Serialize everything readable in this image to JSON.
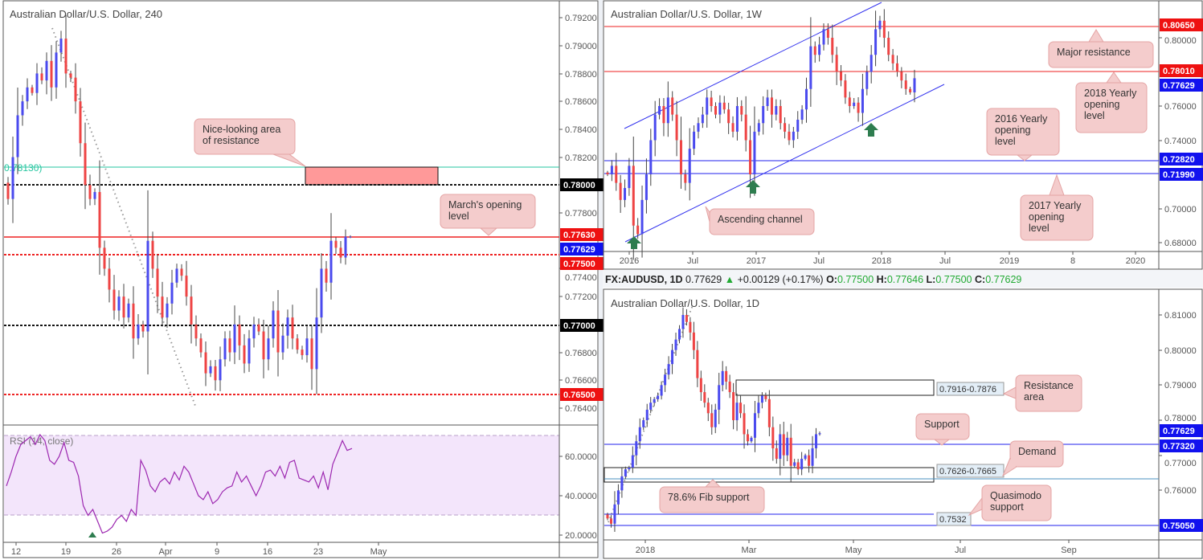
{
  "colors": {
    "up": "#4a4aee",
    "down": "#ee4444",
    "callout_bg": "#f4cccc",
    "callout_border": "#e4a4a4",
    "blue_line": "#2222ee",
    "red_line": "#ee2222",
    "fib_green": "#26c6a0"
  },
  "chart_data": [
    {
      "type": "candlestick",
      "title": "Australian Dollar/U.S. Dollar, 240",
      "ylim": [
        0.7632,
        0.793
      ],
      "x_ticks": [
        "12",
        "19",
        "26",
        "Apr",
        "9",
        "16",
        "23",
        "May"
      ],
      "y_ticks": [
        "0.79200",
        "0.79000",
        "0.78800",
        "0.78600",
        "0.78400",
        "0.78200",
        "0.77800",
        "0.77400",
        "0.77200",
        "0.76800",
        "0.76600",
        "0.76400"
      ],
      "price_badges": [
        "0.78000",
        "0.77630",
        "0.77629",
        "0.77500",
        "0.77000",
        "0.76500"
      ],
      "fib_label": "0.78130)",
      "levels": {
        "fib": 0.7813,
        "round_high": 0.78,
        "march_open": 0.7763,
        "current": 0.77629,
        "level_7750": 0.775,
        "round_low": 0.77,
        "level_7650": 0.765
      },
      "resistance_zone": [
        0.78,
        0.7813
      ],
      "closes": [
        0.779,
        0.782,
        0.785,
        0.786,
        0.787,
        0.7866,
        0.788,
        0.7875,
        0.7889,
        0.787,
        0.7895,
        0.7905,
        0.788,
        0.7877,
        0.786,
        0.783,
        0.78,
        0.779,
        0.7795,
        0.7755,
        0.774,
        0.7725,
        0.771,
        0.772,
        0.7705,
        0.7715,
        0.769,
        0.77,
        0.7695,
        0.776,
        0.774,
        0.772,
        0.7705,
        0.7715,
        0.773,
        0.774,
        0.7735,
        0.772,
        0.77,
        0.769,
        0.768,
        0.7665,
        0.767,
        0.766,
        0.7675,
        0.769,
        0.768,
        0.77,
        0.7685,
        0.7672,
        0.769,
        0.77,
        0.7695,
        0.7675,
        0.769,
        0.771,
        0.768,
        0.7692,
        0.7705,
        0.769,
        0.7682,
        0.7678,
        0.769,
        0.7668,
        0.7705,
        0.774,
        0.773,
        0.776,
        0.7755,
        0.7748,
        0.7763,
        0.7763
      ],
      "annotations": [
        "Nice-looking area\nof resistance",
        "March's opening\nlevel"
      ],
      "rsi": {
        "label": "RSI (14, close)",
        "ylim": [
          15,
          75
        ],
        "y_ticks": [
          "60.0000",
          "40.0000",
          "20.0000"
        ],
        "bands": [
          30,
          70
        ],
        "values": [
          45,
          52,
          60,
          66,
          68,
          70,
          66,
          71,
          68,
          58,
          56,
          60,
          67,
          58,
          57,
          50,
          35,
          30,
          33,
          27,
          21,
          22,
          24,
          28,
          30,
          27,
          33,
          30,
          58,
          53,
          45,
          42,
          47,
          49,
          46,
          52,
          48,
          55,
          52,
          46,
          40,
          38,
          42,
          36,
          38,
          42,
          44,
          45,
          52,
          47,
          50,
          45,
          40,
          45,
          52,
          53,
          50,
          55,
          49,
          57,
          58,
          49,
          48,
          47,
          50,
          44,
          52,
          43,
          56,
          62,
          68,
          63,
          64
        ]
      }
    },
    {
      "type": "candlestick",
      "title": "Australian Dollar/U.S. Dollar, 1W",
      "ylim": [
        0.676,
        0.822
      ],
      "x_ticks": [
        "2016",
        "Jul",
        "2017",
        "Jul",
        "2018",
        "Jul",
        "2019",
        "8",
        "2020"
      ],
      "y_ticks": [
        "0.80000",
        "0.76000",
        "0.74000",
        "0.70000",
        "0.68000"
      ],
      "price_badges": [
        "0.80650",
        "0.78010",
        "0.77629",
        "0.72820",
        "0.71990"
      ],
      "levels": {
        "major_resistance": 0.8065,
        "yearly_open_2018": 0.7801,
        "yearly_open_2016": 0.7282,
        "yearly_open_2017": 0.7199
      },
      "closes": [
        0.72,
        0.725,
        0.715,
        0.705,
        0.712,
        0.725,
        0.69,
        0.685,
        0.705,
        0.72,
        0.74,
        0.755,
        0.76,
        0.75,
        0.765,
        0.755,
        0.74,
        0.72,
        0.715,
        0.735,
        0.745,
        0.75,
        0.755,
        0.765,
        0.76,
        0.755,
        0.762,
        0.758,
        0.75,
        0.745,
        0.76,
        0.755,
        0.74,
        0.72,
        0.745,
        0.75,
        0.76,
        0.765,
        0.755,
        0.76,
        0.75,
        0.745,
        0.74,
        0.745,
        0.752,
        0.758,
        0.77,
        0.795,
        0.79,
        0.796,
        0.805,
        0.8,
        0.79,
        0.78,
        0.775,
        0.765,
        0.76,
        0.762,
        0.756,
        0.77,
        0.78,
        0.79,
        0.805,
        0.81,
        0.8,
        0.79,
        0.785,
        0.78,
        0.775,
        0.77,
        0.768,
        0.7763
      ],
      "annotations": [
        "Major resistance",
        "2018 Yearly\nopening\nlevel",
        "2016 Yearly\nopening\nlevel",
        "Ascending channel",
        "2017 Yearly\nopening\nlevel"
      ]
    },
    {
      "type": "candlestick",
      "title": "Australian Dollar/U.S. Dollar, 1D",
      "ylim": [
        0.7475,
        0.815
      ],
      "x_ticks": [
        "2018",
        "Mar",
        "May",
        "Jul",
        "Sep"
      ],
      "y_ticks": [
        "0.81000",
        "0.80000",
        "0.79000",
        "0.78000",
        "0.77000",
        "0.76000"
      ],
      "price_badges": [
        "0.77629",
        "0.77320",
        "0.75050"
      ],
      "levels": {
        "support": 0.7732,
        "fib_786": 0.764,
        "quasimodo": 0.7532,
        "low": 0.7505
      },
      "zones": {
        "resistance": [
          0.7876,
          0.7916
        ],
        "demand": [
          0.7626,
          0.7665
        ]
      },
      "zone_labels": [
        "0.7916-0.7876",
        "0.7626-0.7665",
        "0.7532"
      ],
      "closes": [
        0.752,
        0.7505,
        0.756,
        0.76,
        0.764,
        0.766,
        0.7665,
        0.77,
        0.774,
        0.778,
        0.78,
        0.783,
        0.785,
        0.786,
        0.787,
        0.79,
        0.793,
        0.796,
        0.8,
        0.803,
        0.806,
        0.81,
        0.808,
        0.805,
        0.8,
        0.792,
        0.788,
        0.785,
        0.782,
        0.778,
        0.783,
        0.79,
        0.794,
        0.791,
        0.788,
        0.78,
        0.785,
        0.782,
        0.776,
        0.774,
        0.775,
        0.782,
        0.785,
        0.787,
        0.786,
        0.778,
        0.772,
        0.769,
        0.776,
        0.77,
        0.775,
        0.767,
        0.768,
        0.766,
        0.769,
        0.77,
        0.767,
        0.772,
        0.776,
        0.7763
      ],
      "annotations": [
        "Resistance\narea",
        "Support",
        "Demand",
        "78.6% Fib support",
        "Quasimodo\nsupport"
      ]
    }
  ],
  "header": {
    "symbol": "FX:AUDUSD, 1D",
    "last": "0.77629",
    "change_arrow": "▲",
    "change": "+0.00129 (+0.17%)",
    "o_label": "O:",
    "o": "0.77500",
    "h_label": "H:",
    "h": "0.77646",
    "l_label": "L:",
    "l": "0.77500",
    "c_label": "C:",
    "c": "0.77629"
  }
}
